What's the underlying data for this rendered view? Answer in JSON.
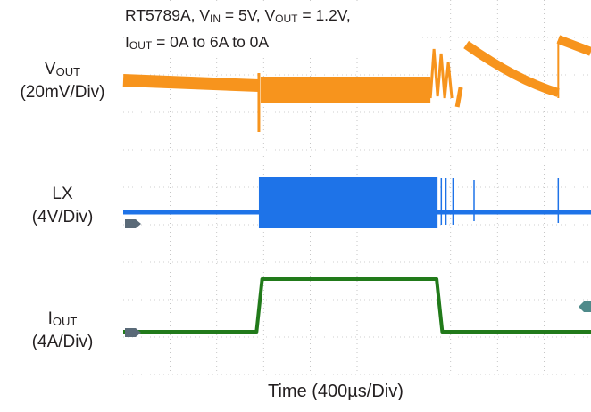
{
  "chart_data": {
    "type": "line",
    "title_parts": {
      "part": "RT5789A, V",
      "vin_sub": "IN",
      "vin_val": " = 5V, V",
      "vout_sub": "OUT",
      "vout_val": " = 1.2V,",
      "iout_base": "I",
      "iout_sub": "OUT",
      "iout_val": " = 0A to 6A to 0A"
    },
    "xlabel": "Time (400µs/Div)",
    "x_divisions": 10,
    "grid": true,
    "colors": {
      "vout": "#f7941d",
      "lx": "#1e73e8",
      "iout": "#217a1a",
      "grid": "#a0a0a0",
      "marker": "#5a6a78"
    },
    "channels": [
      {
        "key": "vout",
        "name_base": "V",
        "name_sub": "OUT",
        "scale": "(20mV/Div)"
      },
      {
        "key": "lx",
        "name_base": "LX",
        "name_sub": "",
        "scale": "(4V/Div)"
      },
      {
        "key": "iout",
        "name_base": "I",
        "name_sub": "OUT",
        "scale": "(4A/Div)"
      }
    ],
    "iout_trace": {
      "x_div": [
        0,
        2.85,
        2.97,
        6.7,
        6.82,
        10
      ],
      "i_A": [
        0,
        0,
        6,
        6,
        0,
        0
      ]
    },
    "lx_trace": {
      "switching_start_div": 2.9,
      "switching_end_div": 6.72
    },
    "vout_trace": {
      "step_in_div": 2.9,
      "step_out_div": 6.72
    }
  }
}
